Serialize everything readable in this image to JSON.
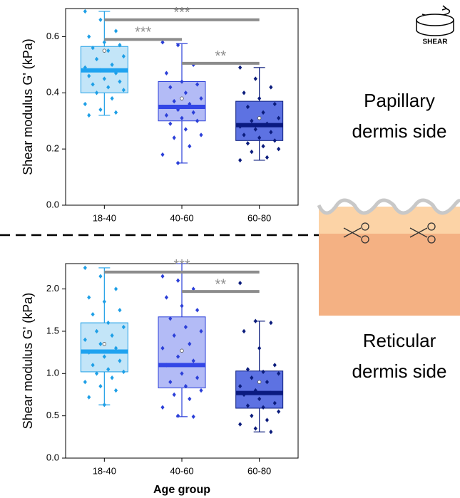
{
  "chart_data": [
    {
      "type": "box",
      "ylabel": "Shear modulus G' (kPa)",
      "categories": [
        "18-40",
        "40-60",
        "60-80"
      ],
      "ylim": [
        0,
        0.7
      ],
      "yticks": [
        {
          "value": 0,
          "label": "0.0"
        },
        0.2,
        0.4,
        0.6
      ],
      "boxes": [
        {
          "color": "#1e9fe6",
          "fill": "#c3e5f8",
          "median_color": "#1fa3f0",
          "min": 0.32,
          "q1": 0.4,
          "median": 0.48,
          "q3": 0.565,
          "max": 0.69,
          "mean": 0.55,
          "points": [
            0.69,
            0.66,
            0.62,
            0.6,
            0.58,
            0.57,
            0.56,
            0.55,
            0.53,
            0.52,
            0.5,
            0.49,
            0.48,
            0.47,
            0.46,
            0.45,
            0.44,
            0.43,
            0.42,
            0.41,
            0.4,
            0.38,
            0.36,
            0.34,
            0.33,
            0.32
          ]
        },
        {
          "color": "#2b3fd8",
          "fill": "#b3bbf6",
          "median_color": "#3346e6",
          "min": 0.15,
          "q1": 0.3,
          "median": 0.35,
          "q3": 0.44,
          "max": 0.575,
          "mean": 0.38,
          "points": [
            0.58,
            0.57,
            0.5,
            0.47,
            0.44,
            0.43,
            0.42,
            0.4,
            0.38,
            0.37,
            0.36,
            0.35,
            0.34,
            0.33,
            0.32,
            0.31,
            0.3,
            0.29,
            0.27,
            0.25,
            0.24,
            0.21,
            0.18,
            0.15
          ]
        },
        {
          "color": "#0b1c7c",
          "fill": "#5d72e2",
          "median_color": "#0a1a80",
          "min": 0.16,
          "q1": 0.23,
          "median": 0.285,
          "q3": 0.37,
          "max": 0.49,
          "mean": 0.31,
          "points": [
            0.49,
            0.45,
            0.42,
            0.4,
            0.38,
            0.36,
            0.35,
            0.33,
            0.31,
            0.3,
            0.29,
            0.28,
            0.27,
            0.26,
            0.25,
            0.24,
            0.23,
            0.22,
            0.21,
            0.2,
            0.19,
            0.17,
            0.16
          ]
        }
      ],
      "annotations": [
        {
          "text": "***",
          "from": "18-40",
          "to": "60-80",
          "y": 0.66
        },
        {
          "text": "***",
          "from": "18-40",
          "to": "40-60",
          "y": 0.59
        },
        {
          "text": "**",
          "from": "40-60",
          "to": "60-80",
          "y": 0.505
        }
      ]
    },
    {
      "type": "box",
      "ylabel": "Shear modulus G' (kPa)",
      "xlabel": "Age group",
      "categories": [
        "18-40",
        "40-60",
        "60-80"
      ],
      "ylim": [
        0,
        2.3
      ],
      "yticks": [
        {
          "value": 0,
          "label": "0.0"
        },
        0.5,
        {
          "value": 1,
          "label": "1.0"
        },
        1.5,
        {
          "value": 2,
          "label": "2.0"
        }
      ],
      "boxes": [
        {
          "color": "#1e9fe6",
          "fill": "#c3e5f8",
          "median_color": "#1fa3f0",
          "min": 0.63,
          "q1": 1.02,
          "median": 1.26,
          "q3": 1.6,
          "max": 2.25,
          "mean": 1.35,
          "points": [
            2.25,
            2.15,
            2.0,
            1.9,
            1.85,
            1.75,
            1.7,
            1.6,
            1.55,
            1.5,
            1.45,
            1.4,
            1.35,
            1.3,
            1.25,
            1.2,
            1.15,
            1.1,
            1.05,
            1.02,
            1.0,
            0.95,
            0.9,
            0.85,
            0.8,
            0.72,
            0.63
          ]
        },
        {
          "color": "#2b3fd8",
          "fill": "#b3bbf6",
          "median_color": "#3346e6",
          "min": 0.49,
          "q1": 0.83,
          "median": 1.1,
          "q3": 1.67,
          "max": 2.3,
          "mean": 1.27,
          "points": [
            2.15,
            2.1,
            2.0,
            1.9,
            1.8,
            1.75,
            1.65,
            1.55,
            1.5,
            1.45,
            1.35,
            1.3,
            1.2,
            1.15,
            1.1,
            1.0,
            0.95,
            0.9,
            0.85,
            0.8,
            0.75,
            0.7,
            0.6,
            0.5,
            0.49
          ]
        },
        {
          "color": "#0b1c7c",
          "fill": "#5d72e2",
          "median_color": "#0a1a80",
          "min": 0.31,
          "q1": 0.59,
          "median": 0.77,
          "q3": 1.03,
          "max": 1.62,
          "mean": 0.9,
          "points": [
            2.07,
            1.62,
            1.6,
            1.5,
            1.3,
            1.1,
            1.05,
            1.02,
            1.0,
            0.95,
            0.9,
            0.85,
            0.8,
            0.77,
            0.75,
            0.7,
            0.65,
            0.62,
            0.6,
            0.55,
            0.5,
            0.45,
            0.4,
            0.35,
            0.31
          ]
        }
      ],
      "annotations": [
        {
          "text": "***",
          "from": "18-40",
          "to": "60-80",
          "y": 2.2
        },
        {
          "text": "**",
          "from": "40-60",
          "to": "60-80",
          "y": 1.97
        }
      ]
    }
  ],
  "panel": {
    "icon_label": "SHEAR",
    "top_label": [
      "Papillary",
      "dermis side"
    ],
    "bottom_label": [
      "Reticular",
      "dermis side"
    ]
  }
}
